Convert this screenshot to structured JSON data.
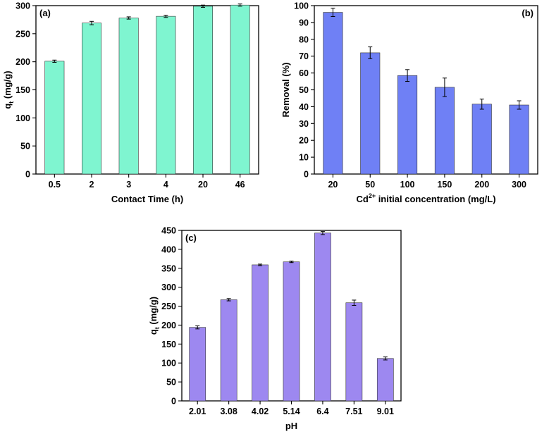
{
  "chart_data": [
    {
      "id": "a",
      "type": "bar",
      "panel_label": "(a)",
      "categories": [
        "0.5",
        "2",
        "3",
        "4",
        "20",
        "46"
      ],
      "values": [
        201,
        269,
        278,
        281,
        299,
        301
      ],
      "errors": [
        2,
        3,
        2,
        2,
        2,
        2
      ],
      "xlabel": "Contact Time (h)",
      "ylabel_main": "q",
      "ylabel_sub": "t",
      "ylabel_tail": " (mg/g)",
      "ylim": [
        0,
        300
      ],
      "yticks": [
        0,
        50,
        100,
        150,
        200,
        250,
        300
      ],
      "bar_color": "#7ff5d0",
      "panel_label_position": "top-left"
    },
    {
      "id": "b",
      "type": "bar",
      "panel_label": "(b)",
      "categories": [
        "20",
        "50",
        "100",
        "150",
        "200",
        "300"
      ],
      "values": [
        96,
        72,
        58.5,
        51.5,
        41.5,
        41
      ],
      "errors": [
        2.5,
        3.5,
        3.5,
        5.5,
        3,
        2.5
      ],
      "xlabel_main": "Cd",
      "xlabel_sup": "2+",
      "xlabel_tail": " initial concentration (mg/L)",
      "ylabel": "Removal (%)",
      "ylim": [
        0,
        100
      ],
      "yticks": [
        0,
        10,
        20,
        30,
        40,
        50,
        60,
        70,
        80,
        90,
        100
      ],
      "bar_color": "#6f80f5",
      "panel_label_position": "top-right"
    },
    {
      "id": "c",
      "type": "bar",
      "panel_label": "(c)",
      "categories": [
        "2.01",
        "3.08",
        "4.02",
        "5.14",
        "6.4",
        "7.51",
        "9.01"
      ],
      "values": [
        194,
        267,
        359,
        367,
        443,
        259,
        112
      ],
      "errors": [
        4,
        3,
        2,
        2,
        4,
        7,
        4
      ],
      "xlabel": "pH",
      "ylabel_main": "q",
      "ylabel_sub": "t",
      "ylabel_tail": " (mg/g)",
      "ylim": [
        0,
        450
      ],
      "yticks": [
        0,
        50,
        100,
        150,
        200,
        250,
        300,
        350,
        400,
        450
      ],
      "bar_color": "#9d88f0",
      "panel_label_position": "top-left"
    }
  ]
}
